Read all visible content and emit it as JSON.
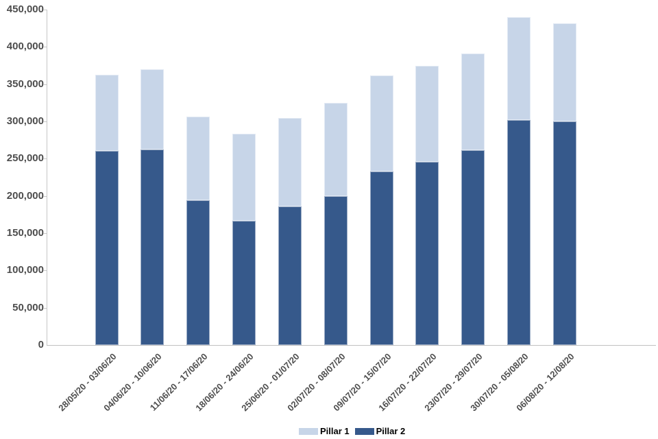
{
  "chart_data": {
    "type": "bar",
    "stacked": true,
    "title": "",
    "xlabel": "",
    "ylabel": "",
    "categories": [
      "28/05/20 - 03/06/20",
      "04/06/20 - 10/06/20",
      "11/06/20 - 17/06/20",
      "18/06/20 - 24/06/20",
      "25/06/20 - 01/07/20",
      "02/07/20 - 08/07/20",
      "09/07/20 - 15/07/20",
      "16/07/20 - 22/07/20",
      "23/07/20 - 29/07/20",
      "30/07/20 - 05/08/20",
      "06/08/20 - 12/08/20"
    ],
    "series": [
      {
        "name": "Pillar 1",
        "color": "#c7d5e8",
        "values": [
          103000,
          108000,
          112000,
          116000,
          119000,
          125000,
          129000,
          129000,
          130000,
          138000,
          132000
        ]
      },
      {
        "name": "Pillar 2",
        "color": "#36598b",
        "values": [
          260000,
          262000,
          194000,
          167000,
          186000,
          200000,
          233000,
          246000,
          261000,
          302000,
          300000
        ]
      }
    ],
    "stack_order_bottom_to_top": [
      "Pillar 2",
      "Pillar 1"
    ],
    "ylim": [
      0,
      450000
    ],
    "ytick_interval": 50000,
    "ytick_labels": [
      "0",
      "50,000",
      "100,000",
      "150,000",
      "200,000",
      "250,000",
      "300,000",
      "350,000",
      "400,000",
      "450,000"
    ],
    "legend_position": "bottom-center",
    "grid": false,
    "colors": {
      "axis": "#c6c6c6",
      "tick_label_text": "#4d4d4d",
      "legend_text": "#000000",
      "background": "#ffffff"
    }
  }
}
